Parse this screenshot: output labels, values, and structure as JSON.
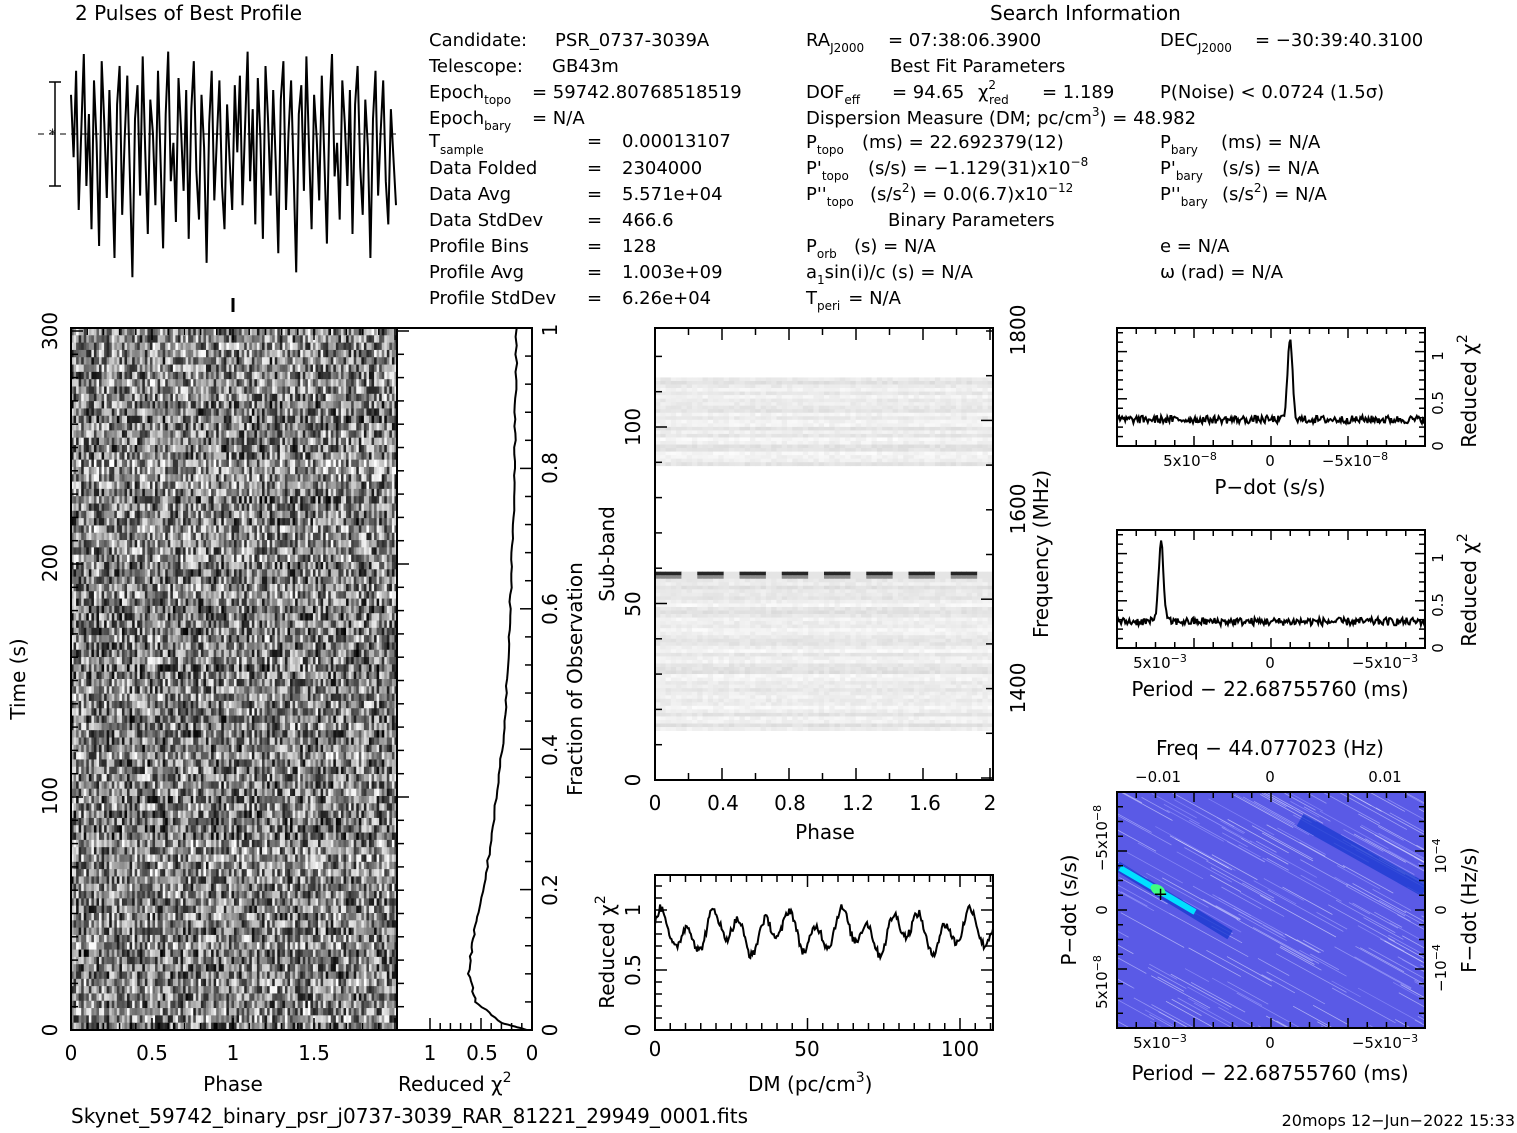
{
  "profile": {
    "title": "2 Pulses of Best Profile",
    "values": [
      0.78,
      0.52,
      0.88,
      0.3,
      0.62,
      0.95,
      0.4,
      0.7,
      0.22,
      0.84,
      0.58,
      0.15,
      0.92,
      0.66,
      0.35,
      0.8,
      0.48,
      0.1,
      0.74,
      0.9,
      0.28,
      0.6,
      0.86,
      0.44,
      0.02,
      0.68,
      0.82,
      0.36,
      0.94,
      0.55,
      0.2,
      0.76,
      0.62,
      0.32,
      0.88,
      0.5,
      0.14,
      0.7,
      0.96,
      0.42,
      0.58,
      0.25,
      0.85,
      0.64,
      0.38,
      0.8,
      0.18,
      0.72,
      0.92,
      0.46,
      0.26,
      0.78,
      0.56,
      0.08,
      0.66,
      0.88,
      0.34,
      0.6,
      0.84,
      0.4,
      0.22,
      0.74,
      0.5,
      0.3,
      0.82,
      0.54,
      0.86,
      0.32,
      0.64,
      0.96,
      0.42,
      0.72,
      0.24,
      0.85,
      0.6,
      0.18,
      0.9,
      0.68,
      0.36,
      0.8,
      0.5,
      0.12,
      0.76,
      0.92,
      0.3,
      0.62,
      0.84,
      0.46,
      0.04,
      0.7,
      0.82,
      0.38,
      0.94,
      0.56,
      0.22,
      0.78,
      0.6,
      0.34,
      0.86,
      0.52,
      0.16,
      0.72,
      0.95,
      0.44,
      0.58,
      0.26,
      0.84,
      0.66,
      0.4,
      0.8,
      0.2,
      0.74,
      0.9,
      0.48,
      0.28,
      0.76,
      0.56,
      0.1,
      0.68,
      0.88,
      0.36,
      0.62,
      0.84,
      0.42,
      0.24,
      0.72,
      0.52,
      0.32
    ]
  },
  "header": {
    "search_info_title": "Search Information",
    "candidate_label": "Candidate:",
    "candidate_value": "PSR_0737-3039A",
    "telescope_label": "Telescope:",
    "telescope_value": "GB43m",
    "epoch_topo_label": "Epoch",
    "epoch_topo_sub": "topo",
    "epoch_topo_value": "= 59742.80768518519",
    "epoch_bary_label": "Epoch",
    "epoch_bary_sub": "bary",
    "epoch_bary_value": "= N/A",
    "tsample_label": "T",
    "tsample_sub": "sample",
    "tsample_eq": "=",
    "tsample_value": "0.00013107",
    "folded_label": "Data Folded",
    "folded_eq": "=",
    "folded_value": "2304000",
    "avg_label": "Data Avg",
    "avg_eq": "=",
    "avg_value": "5.571e+04",
    "std_label": "Data StdDev",
    "std_eq": "=",
    "std_value": "466.6",
    "bins_label": "Profile Bins",
    "bins_eq": "=",
    "bins_value": "128",
    "pavg_label": "Profile Avg",
    "pavg_eq": "=",
    "pavg_value": "1.003e+09",
    "pstd_label": "Profile StdDev",
    "pstd_eq": "=",
    "pstd_value": "6.26e+04",
    "ra_label": "RA",
    "ra_sub": "J2000",
    "ra_value": "= 07:38:06.3900",
    "dec_label": "DEC",
    "dec_sub": "J2000",
    "dec_value": "= −30:39:40.3100",
    "best_fit_title": "Best Fit Parameters",
    "dof_label": "DOF",
    "dof_sub": "eff",
    "dof_value": "= 94.65",
    "chi_label": "χ",
    "chi_sup": "2",
    "chi_sub": "red",
    "chi_value": "= 1.189",
    "noise_value": "P(Noise) < 0.0724   (1.5σ)",
    "dm_text": "Dispersion Measure (DM; pc/cm",
    "dm_sup": "3",
    "dm_value": ") = 48.982",
    "ptopo_label": "P",
    "ptopo_sub": "topo",
    "ptopo_value": "(ms) =  22.692379(12)",
    "pbary_label": "P",
    "pbary_sub": "bary",
    "pbary_value": "(ms) = N/A",
    "pdtopo_label": "P'",
    "pdtopo_sub": "topo",
    "pdtopo_value": "(s/s) = −1.129(31)x10",
    "pdtopo_exp": "−8",
    "pdbary_label": "P'",
    "pdbary_sub": "bary",
    "pdbary_value": "(s/s) = N/A",
    "pddtopo_label": "P''",
    "pddtopo_sub": "topo",
    "pddtopo_value": "(s/s",
    "pddtopo_sup": "2",
    "pddtopo_value2": ") = 0.0(6.7)x10",
    "pddtopo_exp": "−12",
    "pddbary_label": "P''",
    "pddbary_sub": "bary",
    "pddbary_value": "(s/s",
    "pddbary_sup": "2",
    "pddbary_value2": ") = N/A",
    "binary_title": "Binary Parameters",
    "porb_label": "P",
    "porb_sub": "orb",
    "porb_value": "(s) = N/A",
    "e_value": "e = N/A",
    "a1_label": "a",
    "a1_sub": "1",
    "a1_value": "sin(i)/c (s) = N/A",
    "omega_value": "ω (rad) = N/A",
    "tperi_label": "T",
    "tperi_sub": "peri",
    "tperi_value": "= N/A"
  },
  "time_phase": {
    "ylabel": "Time (s)",
    "xlabel": "Phase",
    "yticks": [
      "0",
      "100",
      "200",
      "300"
    ],
    "xticks": [
      "0",
      "0.5",
      "1",
      "1.5"
    ]
  },
  "redchi_time": {
    "xlabel": "Reduced χ",
    "xlabel_sup": "2",
    "ylabel": "Fraction of Observation",
    "xticks": [
      "1",
      "0.5",
      "0"
    ],
    "yticks": [
      "0",
      "0.2",
      "0.4",
      "0.6",
      "0.8",
      "1"
    ]
  },
  "subband": {
    "ylabel": "Sub-band",
    "xlabel": "Phase",
    "xticks": [
      "0",
      "0.4",
      "0.8",
      "1.2",
      "1.6",
      "2"
    ],
    "yticks": [
      "0",
      "50",
      "100"
    ],
    "freq_label": "Frequency (MHz)",
    "freq_ticks": [
      "1400",
      "1600",
      "1800"
    ]
  },
  "dm_chart": {
    "xlabel": "DM (pc/cm",
    "xlabel_sup": "3",
    "xlabel_end": ")",
    "ylabel": "Reduced χ",
    "ylabel_sup": "2",
    "xticks": [
      "0",
      "50",
      "100"
    ],
    "yticks": [
      "0",
      "0.5",
      "1"
    ]
  },
  "pdot_chart": {
    "xlabel": "P−dot (s/s)",
    "ylabel": "Reduced χ",
    "ylabel_sup": "2",
    "xtick_left": "5x10",
    "xtick_left_exp": "−8",
    "xtick_mid": "0",
    "xtick_right": "−5x10",
    "xtick_right_exp": "−8",
    "yticks": [
      "0",
      "0.5",
      "1"
    ]
  },
  "period_chart": {
    "xlabel": "Period − 22.68755760 (ms)",
    "ylabel": "Reduced χ",
    "ylabel_sup": "2",
    "xtick_left": "5x10",
    "xtick_left_exp": "−3",
    "xtick_mid": "0",
    "xtick_right": "−5x10",
    "xtick_right_exp": "−3",
    "yticks": [
      "0",
      "0.5",
      "1"
    ]
  },
  "ppdot": {
    "top_label": "Freq − 44.077023 (Hz)",
    "top_ticks": [
      "−0.01",
      "0",
      "0.01"
    ],
    "xlabel": "Period − 22.68755760 (ms)",
    "xtick_left": "5x10",
    "xtick_left_exp": "−3",
    "xtick_mid": "0",
    "xtick_right": "−5x10",
    "xtick_right_exp": "−3",
    "ylabel": "P−dot (s/s)",
    "ytick_top": "−5x10",
    "ytick_top_exp": "−8",
    "ytick_mid": "0",
    "ytick_bot": "5x10",
    "ytick_bot_exp": "−8",
    "rlabel": "F−dot (Hz/s)",
    "rtick_top": "10",
    "rtick_top_exp": "−4",
    "rtick_mid": "0",
    "rtick_bot": "−10",
    "rtick_bot_exp": "−4",
    "colors": {
      "bg": "#5a5ae6",
      "streak": "#1a3ad0",
      "peak": "#00e0ff",
      "hot": "#40ff80"
    }
  },
  "footer": {
    "filename": "Skynet_59742_binary_psr_j0737-3039_RAR_81221_29949_0001.fits",
    "stamp": "20mops 12−Jun−2022 15:33"
  },
  "chart_data": [
    {
      "type": "line",
      "name": "profile",
      "title": "2 Pulses of Best Profile",
      "x_range": [
        0,
        2
      ]
    },
    {
      "type": "heatmap",
      "name": "time-phase",
      "xlabel": "Phase",
      "ylabel": "Time (s)",
      "xlim": [
        0,
        2
      ],
      "ylim": [
        0,
        300
      ]
    },
    {
      "type": "line",
      "name": "reduced-chi-vs-fraction",
      "xlabel": "Reduced χ2",
      "ylabel": "Fraction of Observation",
      "points": [
        [
          0.05,
          0.0
        ],
        [
          0.3,
          0.01
        ],
        [
          0.55,
          0.04
        ],
        [
          0.62,
          0.08
        ],
        [
          0.58,
          0.13
        ],
        [
          0.5,
          0.18
        ],
        [
          0.42,
          0.25
        ],
        [
          0.35,
          0.33
        ],
        [
          0.28,
          0.42
        ],
        [
          0.24,
          0.5
        ],
        [
          0.22,
          0.58
        ],
        [
          0.2,
          0.66
        ],
        [
          0.18,
          0.74
        ],
        [
          0.17,
          0.82
        ],
        [
          0.16,
          0.9
        ],
        [
          0.15,
          1.0
        ]
      ]
    },
    {
      "type": "heatmap",
      "name": "subband-phase",
      "xlabel": "Phase",
      "ylabel": "Sub-band",
      "xlim": [
        0,
        2
      ],
      "ylim": [
        0,
        128
      ],
      "freq_range_mhz": [
        1300,
        1800
      ]
    },
    {
      "type": "line",
      "name": "dm-curve",
      "xlabel": "DM (pc/cm3)",
      "ylabel": "Reduced χ2",
      "xlim": [
        0,
        110
      ],
      "ylim": [
        0,
        1.25
      ]
    },
    {
      "type": "line",
      "name": "pdot-curve",
      "xlabel": "P-dot (s/s)",
      "ylabel": "Reduced χ2",
      "ylim": [
        0,
        1.3
      ],
      "peak_pdot": -1.129e-08,
      "peak_value": 1.2
    },
    {
      "type": "line",
      "name": "period-curve",
      "xlabel": "Period - 22.68755760 (ms)",
      "ylabel": "Reduced χ2",
      "ylim": [
        0,
        1.3
      ],
      "peak_period": 0.005,
      "peak_value": 1.2
    },
    {
      "type": "heatmap",
      "name": "p-pdot-plane",
      "xlabel": "Period - 22.68755760 (ms)",
      "ylabel": "P-dot (s/s)"
    }
  ]
}
